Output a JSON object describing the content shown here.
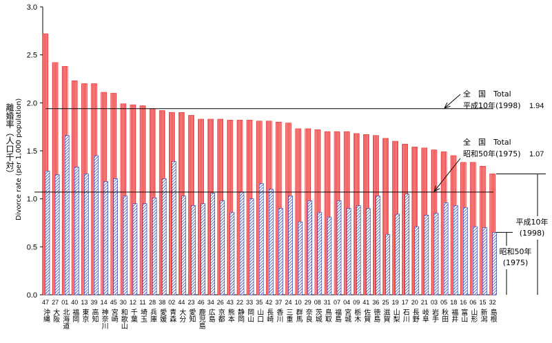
{
  "chart_data": {
    "type": "bar",
    "ylabel": "離婚率（人口千対）",
    "ylabel_en": "Divorce rate (per 1,000 population)",
    "categories": [
      "47",
      "27",
      "01",
      "40",
      "13",
      "39",
      "14",
      "45",
      "30",
      "12",
      "11",
      "28",
      "38",
      "02",
      "44",
      "23",
      "46",
      "34",
      "26",
      "43",
      "22",
      "33",
      "35",
      "42",
      "37",
      "24",
      "10",
      "29",
      "08",
      "31",
      "07",
      "04",
      "09",
      "41",
      "36",
      "25",
      "19",
      "17",
      "20",
      "21",
      "03",
      "05",
      "18",
      "16",
      "06",
      "15",
      "32"
    ],
    "category_names": [
      "沖縄",
      "大阪",
      "北海道",
      "福岡",
      "東京",
      "高知",
      "神奈川",
      "宮崎",
      "和歌山",
      "千葉",
      "埼玉",
      "兵庫",
      "愛媛",
      "青森",
      "大分",
      "愛知",
      "鹿児島",
      "広島",
      "京都",
      "熊本",
      "静岡",
      "岡山",
      "山口",
      "長崎",
      "香川",
      "三重",
      "群馬",
      "奈良",
      "茨城",
      "鳥取",
      "福島",
      "宮城",
      "栃木",
      "佐賀",
      "徳島",
      "滋賀",
      "山梨",
      "石川",
      "長野",
      "岐阜",
      "岩手",
      "秋田",
      "福井",
      "富山",
      "山形",
      "新潟",
      "島根"
    ],
    "series": [
      {
        "name": "平成10年(1998)",
        "color": "#e02828",
        "values": [
          2.72,
          2.42,
          2.38,
          2.23,
          2.2,
          2.2,
          2.11,
          2.1,
          1.99,
          1.98,
          1.97,
          1.94,
          1.92,
          1.9,
          1.9,
          1.87,
          1.83,
          1.83,
          1.83,
          1.82,
          1.82,
          1.82,
          1.81,
          1.81,
          1.8,
          1.79,
          1.73,
          1.73,
          1.72,
          1.7,
          1.7,
          1.7,
          1.68,
          1.67,
          1.66,
          1.63,
          1.6,
          1.57,
          1.54,
          1.53,
          1.51,
          1.49,
          1.45,
          1.38,
          1.38,
          1.34,
          1.26
        ]
      },
      {
        "name": "昭和50年(1975)",
        "color": "#1830a0",
        "values": [
          1.29,
          1.25,
          1.66,
          1.33,
          1.26,
          1.45,
          1.18,
          1.21,
          1.03,
          0.95,
          0.95,
          1.01,
          1.21,
          1.39,
          1.03,
          0.93,
          0.95,
          1.06,
          0.98,
          0.86,
          1.07,
          1.0,
          1.16,
          1.1,
          0.9,
          1.03,
          0.76,
          0.98,
          0.86,
          0.81,
          0.98,
          0.9,
          0.93,
          0.9,
          1.03,
          0.63,
          0.84,
          1.05,
          0.71,
          0.83,
          0.85,
          0.96,
          0.93,
          0.91,
          0.71,
          0.7,
          0.65
        ]
      }
    ],
    "reference_lines": [
      {
        "value": 1.94,
        "label1": "全　国　Total",
        "label2": "平成10年(1998)",
        "value_label": "1.94"
      },
      {
        "value": 1.07,
        "label1": "全　国　Total",
        "label2": "昭和50年(1975)",
        "value_label": "1.07"
      }
    ],
    "legend_labels": [
      {
        "line1": "平成10年",
        "line2": "(1998)"
      },
      {
        "line1": "昭和50年",
        "line2": "(1975)"
      }
    ],
    "ylim": [
      0,
      3
    ],
    "yticks": [
      {
        "value": 0,
        "label": "0.0"
      },
      {
        "value": 0.5,
        "label": "0.5"
      },
      {
        "value": 1,
        "label": "1.0"
      },
      {
        "value": 1.5,
        "label": "1.5"
      },
      {
        "value": 2,
        "label": "2.0"
      },
      {
        "value": 2.5,
        "label": "2.5"
      },
      {
        "value": 3,
        "label": "3.0"
      }
    ]
  }
}
